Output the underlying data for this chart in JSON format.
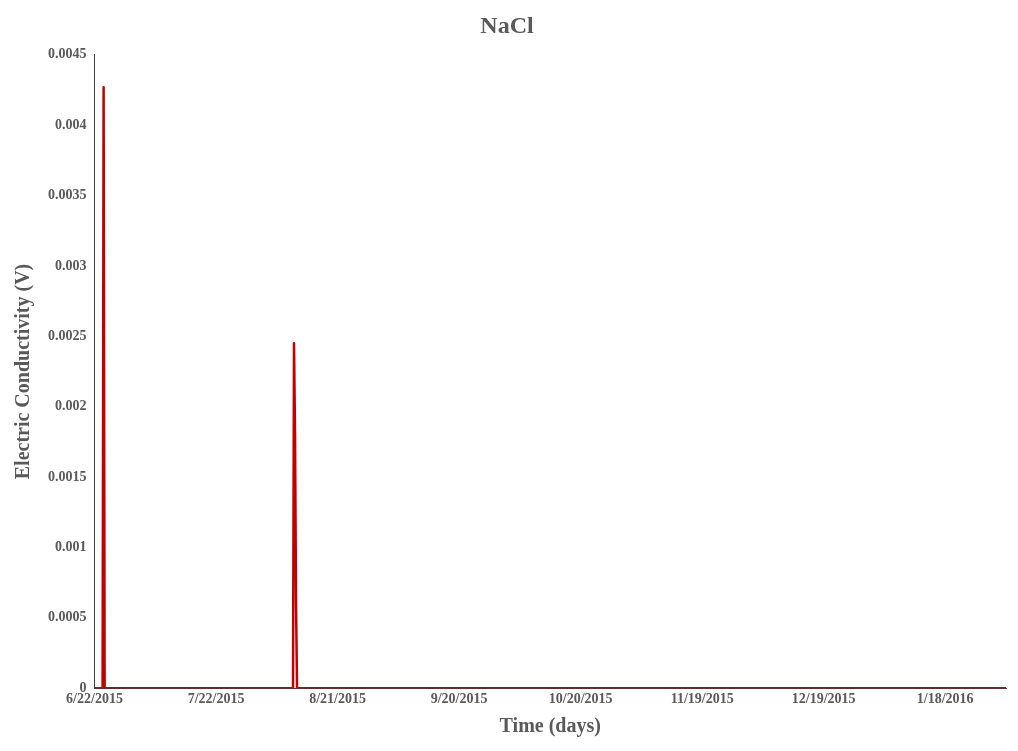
{
  "chart_data": {
    "type": "line",
    "title": "NaCl",
    "xlabel": "Time (days)",
    "ylabel": "Electric Conductivity (V)",
    "x": [
      "2015-06-22",
      "2015-06-24T00:00",
      "2015-06-24T06:00",
      "2015-06-24T12:00",
      "2015-08-10T00:00",
      "2015-08-10T06:00",
      "2015-08-10T12:00",
      "2015-08-10T18:00",
      "2015-08-11T00:00",
      "2016-02-02"
    ],
    "series": [
      {
        "color": "#c00000",
        "values": [
          0,
          0,
          0.00427,
          0,
          0,
          0.00245,
          0.0018,
          0.0006,
          0,
          0
        ]
      }
    ],
    "xlim": [
      "2015-06-22",
      "2016-02-02"
    ],
    "xticks": [
      {
        "value": "2015-06-22",
        "label": "6/22/2015"
      },
      {
        "value": "2015-07-22",
        "label": "7/22/2015"
      },
      {
        "value": "2015-08-21",
        "label": "8/21/2015"
      },
      {
        "value": "2015-09-20",
        "label": "9/20/2015"
      },
      {
        "value": "2015-10-20",
        "label": "10/20/2015"
      },
      {
        "value": "2015-11-19",
        "label": "11/19/2015"
      },
      {
        "value": "2015-12-19",
        "label": "12/19/2015"
      },
      {
        "value": "2016-01-18",
        "label": "1/18/2016"
      }
    ],
    "ylim": [
      0,
      0.0045
    ],
    "yticks": [
      0,
      0.0005,
      0.001,
      0.0015,
      0.002,
      0.0025,
      0.003,
      0.0035,
      0.004,
      0.0045
    ],
    "grid": false,
    "legend": false,
    "marker": "none",
    "line_style": "solid"
  }
}
